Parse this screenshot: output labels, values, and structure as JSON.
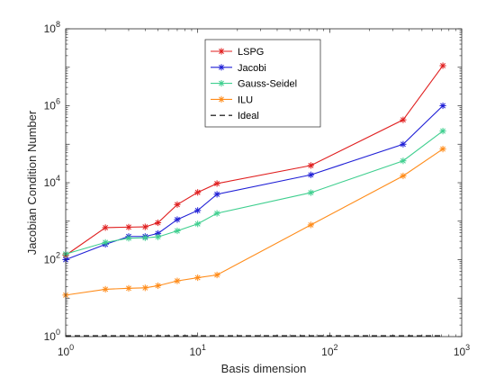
{
  "chart_data": {
    "type": "line",
    "xlabel": "Basis dimension",
    "ylabel": "Jacobian Condition Number",
    "x_scale": "log",
    "y_scale": "log",
    "xlim": [
      1,
      1000
    ],
    "ylim": [
      1,
      100000000
    ],
    "x_ticks": [
      {
        "value": 1,
        "base": "10",
        "exp": "0"
      },
      {
        "value": 10,
        "base": "10",
        "exp": "1"
      },
      {
        "value": 100,
        "base": "10",
        "exp": "2"
      },
      {
        "value": 1000,
        "base": "10",
        "exp": "3"
      }
    ],
    "y_ticks": [
      {
        "value": 1,
        "base": "10",
        "exp": "0"
      },
      {
        "value": 100,
        "base": "10",
        "exp": "2"
      },
      {
        "value": 10000,
        "base": "10",
        "exp": "4"
      },
      {
        "value": 1000000,
        "base": "10",
        "exp": "6"
      },
      {
        "value": 100000000,
        "base": "10",
        "exp": "8"
      }
    ],
    "grid": false,
    "legend_position": "top-center",
    "series": [
      {
        "name": "LSPG",
        "color": "#e01f1f",
        "marker": "asterisk",
        "x": [
          1,
          2,
          3,
          4,
          5,
          7,
          10,
          14,
          72,
          360,
          720
        ],
        "y": [
          130,
          680,
          700,
          710,
          910,
          2700,
          5600,
          9500,
          28000,
          430000,
          11000000
        ]
      },
      {
        "name": "Jacobi",
        "color": "#1f1fd6",
        "marker": "asterisk",
        "x": [
          1,
          2,
          3,
          4,
          5,
          7,
          10,
          14,
          72,
          360,
          720
        ],
        "y": [
          100,
          250,
          400,
          400,
          480,
          1100,
          1900,
          5000,
          16000,
          100000,
          1000000
        ]
      },
      {
        "name": "Gauss-Seidel",
        "color": "#3fcf8f",
        "marker": "asterisk",
        "x": [
          1,
          2,
          3,
          4,
          5,
          7,
          10,
          14,
          72,
          360,
          720
        ],
        "y": [
          140,
          280,
          360,
          370,
          390,
          560,
          850,
          1600,
          5500,
          37000,
          220000
        ]
      },
      {
        "name": "ILU",
        "color": "#ff8c1a",
        "marker": "asterisk",
        "x": [
          1,
          2,
          3,
          4,
          5,
          7,
          10,
          14,
          72,
          360,
          720
        ],
        "y": [
          12,
          17,
          18,
          18.5,
          21,
          28,
          34,
          40,
          800,
          15000,
          75000
        ]
      },
      {
        "name": "Ideal",
        "color": "#000000",
        "marker": "none",
        "dash": "dashed",
        "x": [
          1,
          720
        ],
        "y": [
          1,
          1
        ]
      }
    ]
  }
}
